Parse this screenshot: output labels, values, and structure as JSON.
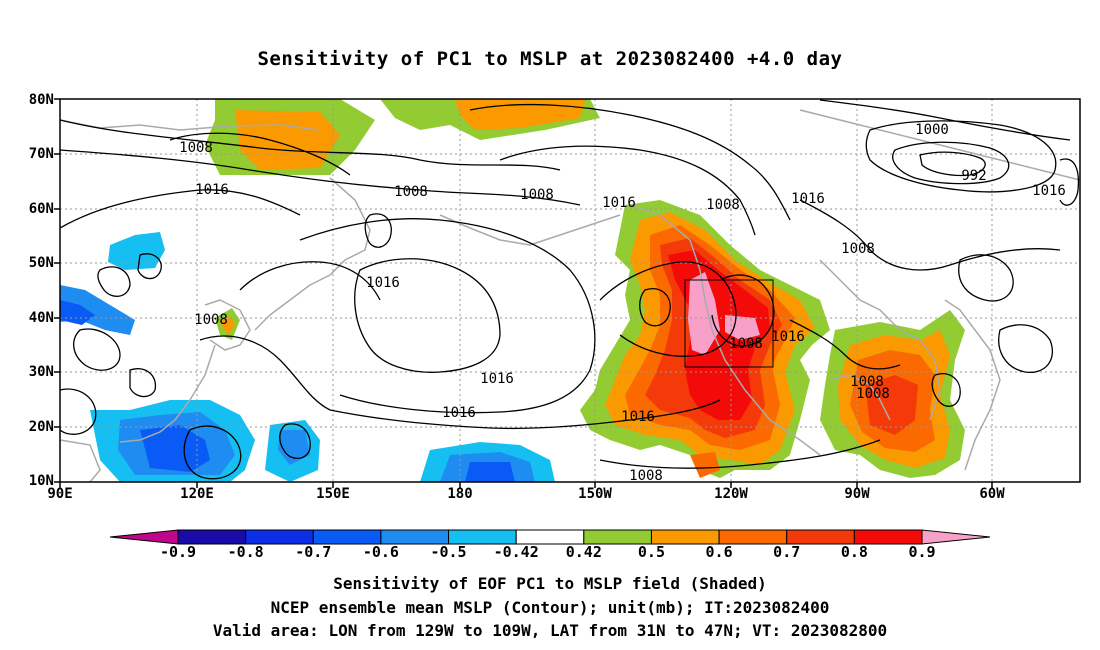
{
  "title": "Sensitivity of PC1 to MSLP at 2023082400 +4.0 day",
  "y_axis": [
    "80N",
    "70N",
    "60N",
    "50N",
    "40N",
    "30N",
    "20N",
    "10N"
  ],
  "x_axis": [
    "90E",
    "120E",
    "150E",
    "180",
    "150W",
    "120W",
    "90W",
    "60W"
  ],
  "isobar_labels": [
    "1008",
    "1016",
    "1008",
    "1008",
    "1016",
    "1008",
    "1016",
    "1000",
    "992",
    "1016",
    "1008",
    "1016",
    "1008",
    "1016",
    "1016",
    "1016",
    "1016",
    "1008",
    "1016",
    "1008",
    "1008",
    "1008"
  ],
  "colorbar": {
    "labels": [
      "-0.9",
      "-0.8",
      "-0.7",
      "-0.6",
      "-0.5",
      "-0.42",
      "0.42",
      "0.5",
      "0.6",
      "0.7",
      "0.8",
      "0.9"
    ],
    "colors": [
      "#c0068c",
      "#1a0aa8",
      "#0b2ee6",
      "#0a5af5",
      "#1e8cf0",
      "#16bff2",
      "#ffffff",
      "#92cc32",
      "#fa9a00",
      "#fa6a00",
      "#f53a0a",
      "#f50a0a",
      "#f7a0c8"
    ]
  },
  "footer": [
    "Sensitivity of EOF PC1 to MSLP field (Shaded)",
    "NCEP ensemble mean MSLP (Contour); unit(mb); IT:2023082400",
    "Valid area: LON from 129W to 109W, LAT from 31N to 47N; VT: 2023082800"
  ],
  "colors": {
    "coast": "#aaaaaa",
    "contour": "#000000",
    "grid": "#999999"
  }
}
